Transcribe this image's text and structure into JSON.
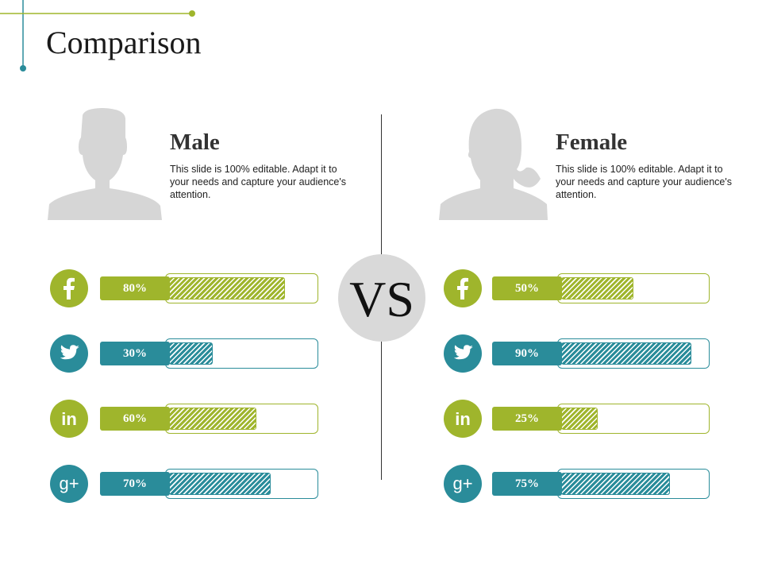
{
  "slide": {
    "title": "Comparison"
  },
  "colors": {
    "green": "#9fb52c",
    "teal": "#2a8c9a",
    "avatar": "#d6d6d6"
  },
  "vs_label": "VS",
  "male": {
    "name": "Male",
    "description": "This slide is 100% editable. Adapt it to your needs and capture your audience's attention.",
    "bars": [
      {
        "network": "facebook",
        "icon": "facebook-icon",
        "label": "80%",
        "value": 80,
        "color": "green"
      },
      {
        "network": "twitter",
        "icon": "twitter-icon",
        "label": "30%",
        "value": 30,
        "color": "teal"
      },
      {
        "network": "linkedin",
        "icon": "linkedin-icon",
        "label": "60%",
        "value": 60,
        "color": "green"
      },
      {
        "network": "google-plus",
        "icon": "google-plus-icon",
        "label": "70%",
        "value": 70,
        "color": "teal"
      }
    ]
  },
  "female": {
    "name": "Female",
    "description": "This slide is 100% editable. Adapt it to your needs and capture your audience's attention.",
    "bars": [
      {
        "network": "facebook",
        "icon": "facebook-icon",
        "label": "50%",
        "value": 50,
        "color": "green"
      },
      {
        "network": "twitter",
        "icon": "twitter-icon",
        "label": "90%",
        "value": 90,
        "color": "teal"
      },
      {
        "network": "linkedin",
        "icon": "linkedin-icon",
        "label": "25%",
        "value": 25,
        "color": "green"
      },
      {
        "network": "google-plus",
        "icon": "google-plus-icon",
        "label": "75%",
        "value": 75,
        "color": "teal"
      }
    ]
  }
}
